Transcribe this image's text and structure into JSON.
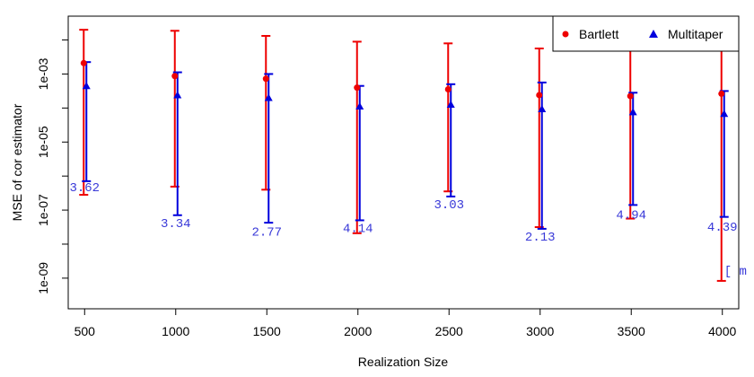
{
  "chart_data": {
    "type": "scatter",
    "xlabel": "Realization Size",
    "ylabel": "MSE of cor estimator",
    "x_ticks": [
      "500",
      "1000",
      "1500",
      "2000",
      "2500",
      "3000",
      "3500",
      "4000"
    ],
    "y_ticks": [
      "1e-09",
      "1e-07",
      "1e-05",
      "1e-03"
    ],
    "y_scale": "log10",
    "xlim": [
      410,
      4090
    ],
    "ylim_log10": [
      -9.9,
      -1.3
    ],
    "legend_position": "top-right",
    "colors": {
      "bartlett": "#ee0000",
      "multitaper": "#0000dd",
      "ratio_text": "#3a3ad8"
    },
    "series": [
      {
        "name": "Bartlett",
        "marker": "circle",
        "x": [
          500,
          1000,
          1500,
          2000,
          2500,
          3000,
          3500,
          4000
        ],
        "y_log10": [
          -2.68,
          -3.06,
          -3.14,
          -3.4,
          -3.45,
          -3.62,
          -3.65,
          -3.58
        ],
        "err_upper_log10": [
          -1.7,
          -1.73,
          -1.88,
          -2.05,
          -2.1,
          -2.25,
          -2.28,
          -2.26
        ],
        "err_lower_log10": [
          -6.55,
          -6.31,
          -6.4,
          -7.68,
          -6.45,
          -7.5,
          -7.25,
          -9.08
        ]
      },
      {
        "name": "Multitaper",
        "marker": "triangle",
        "x": [
          500,
          1000,
          1500,
          2000,
          2500,
          3000,
          3500,
          4000
        ],
        "y_log10": [
          -3.35,
          -3.62,
          -3.7,
          -3.95,
          -3.9,
          -4.03,
          -4.12,
          -4.17
        ],
        "err_upper_log10": [
          -2.65,
          -2.95,
          -3.0,
          -3.35,
          -3.3,
          -3.25,
          -3.55,
          -3.5
        ],
        "err_lower_log10": [
          -6.15,
          -7.15,
          -7.37,
          -7.3,
          -6.6,
          -7.55,
          -6.85,
          -7.2
        ]
      }
    ],
    "annotations": [
      {
        "x": 500,
        "y_log10": -6.45,
        "text": "3.62"
      },
      {
        "x": 1000,
        "y_log10": -7.5,
        "text": "3.34"
      },
      {
        "x": 1500,
        "y_log10": -7.75,
        "text": "2.77"
      },
      {
        "x": 2000,
        "y_log10": -7.65,
        "text": "4.14"
      },
      {
        "x": 2500,
        "y_log10": -6.95,
        "text": "3.03"
      },
      {
        "x": 3000,
        "y_log10": -7.9,
        "text": "2.13"
      },
      {
        "x": 3500,
        "y_log10": -7.25,
        "text": "4.94"
      },
      {
        "x": 4000,
        "y_log10": -7.6,
        "text": "4.39"
      },
      {
        "x": 4000,
        "y_log10": -8.9,
        "text": "[ m"
      }
    ]
  }
}
